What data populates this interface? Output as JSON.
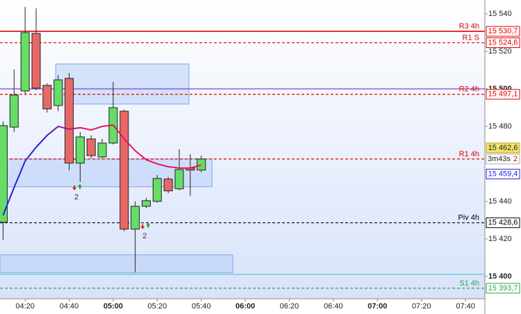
{
  "chart_data": {
    "type": "candlestick",
    "x": [
      250,
      255,
      260,
      265,
      270,
      275,
      280,
      285,
      290,
      295,
      300,
      305,
      310,
      315,
      320,
      325,
      330,
      335,
      340
    ],
    "open": [
      15428.9,
      15479.6,
      15498.9,
      15529.6,
      15501.9,
      15491.1,
      15505.6,
      15460.4,
      15473.3,
      15463.7,
      15471.1,
      15488.1,
      15425.2,
      15437.4,
      15440.0,
      15451.9,
      15446.7,
      15457.8,
      15456.7
    ],
    "high": [
      15482.6,
      15510.4,
      15543.7,
      15543.0,
      15503.0,
      15507.4,
      15508.5,
      15477.0,
      15475.2,
      15473.3,
      15503.7,
      15488.9,
      15440.0,
      15441.9,
      15454.1,
      15453.0,
      15467.8,
      15465.2,
      15464.4
    ],
    "low": [
      15419.6,
      15477.0,
      15497.4,
      15499.3,
      15487.4,
      15488.1,
      15456.7,
      15450.4,
      15463.0,
      15463.0,
      15470.4,
      15424.1,
      15402.2,
      15436.3,
      15439.3,
      15444.4,
      15445.9,
      15443.0,
      15455.6
    ],
    "close": [
      15480.4,
      15496.7,
      15530.0,
      15500.4,
      15489.3,
      15504.8,
      15460.4,
      15474.4,
      15464.4,
      15471.1,
      15490.0,
      15425.2,
      15437.4,
      15440.4,
      15452.2,
      15445.6,
      15457.0,
      15456.7,
      15462.6
    ],
    "up_color": "#66dd66",
    "down_color": "#e86868",
    "ma": {
      "colors": [
        "#2222dd",
        "#ee1155"
      ],
      "values": [
        15432.6,
        15447.4,
        15461.5,
        15468.9,
        15475.2,
        15480.0,
        15478.5,
        15479.3,
        15478.1,
        15480.0,
        15480.7,
        15473.3,
        15467.0,
        15462.2,
        15460.0,
        15458.5,
        15457.8,
        15457.8,
        15459.4
      ]
    },
    "xlim": [
      248.6,
      468.8
    ],
    "xticks": [
      {
        "value": 260,
        "label": "04:20"
      },
      {
        "value": 280,
        "label": "04:40"
      },
      {
        "value": 300,
        "label": "05:00"
      },
      {
        "value": 320,
        "label": "05:20"
      },
      {
        "value": 340,
        "label": "05:40"
      },
      {
        "value": 360,
        "label": "06:00"
      },
      {
        "value": 380,
        "label": "06:20"
      },
      {
        "value": 400,
        "label": "06:40"
      },
      {
        "value": 420,
        "label": "07:00"
      },
      {
        "value": 440,
        "label": "07:20"
      },
      {
        "value": 460,
        "label": "07:40"
      }
    ],
    "ylim": [
      15388.1,
      15547.4
    ],
    "yticks": [
      {
        "value": 15540,
        "label": "15 540"
      },
      {
        "value": 15520,
        "label": "15 520"
      },
      {
        "value": 15500,
        "label": "15 500"
      },
      {
        "value": 15480,
        "label": "15 480"
      },
      {
        "value": 15440,
        "label": "15 440"
      },
      {
        "value": 15420,
        "label": "15 420"
      },
      {
        "value": 15400,
        "label": "15 400"
      }
    ],
    "levels": [
      {
        "name": "R3 4h",
        "value": 15530.7,
        "value_label": "15 530,7",
        "color": "#e00000",
        "dashed": false
      },
      {
        "name": "R1 S",
        "value": 15524.6,
        "value_label": "15 524,6",
        "color": "#e00000",
        "dashed": true
      },
      {
        "name": "R2 4h",
        "value": 15497.1,
        "value_label": "15 497,1",
        "color": "#e00000",
        "dashed": true
      },
      {
        "name": "R1 4h",
        "value": 15462.6,
        "color": "#e00000",
        "dashed": true
      },
      {
        "name": "Piv 4h",
        "value": 15428.6,
        "value_label": "15 428,6",
        "color": "#000000",
        "dashed": true
      },
      {
        "name": "S1 4h",
        "value": 15393.7,
        "value_label": "15 393,7",
        "color": "#22aa44",
        "dashed": true
      }
    ],
    "lines": [
      {
        "value": 15500,
        "color": "#7a30c8"
      },
      {
        "value": 15401.1,
        "color": "#55cccc"
      }
    ],
    "zones": [
      {
        "x": [
          273.9,
          334.4
        ],
        "y": [
          15491.9,
          15513.3
        ]
      },
      {
        "x": [
          248.6,
          344.9
        ],
        "y": [
          15447.8,
          15462.6
        ]
      },
      {
        "x": [
          248.6,
          354.3
        ],
        "y": [
          15401.9,
          15411.5
        ]
      }
    ],
    "annotations": [
      {
        "x": 283,
        "y": 15447.0,
        "text": "2"
      },
      {
        "x": 314,
        "y": 15426.3,
        "text": "2"
      }
    ],
    "current_price": {
      "value": 15462.6,
      "label": "15 462,6"
    },
    "ma_label": {
      "value": 15459.4,
      "label": "15 459,4"
    },
    "timer": "3m43s",
    "timer_count": "2"
  }
}
